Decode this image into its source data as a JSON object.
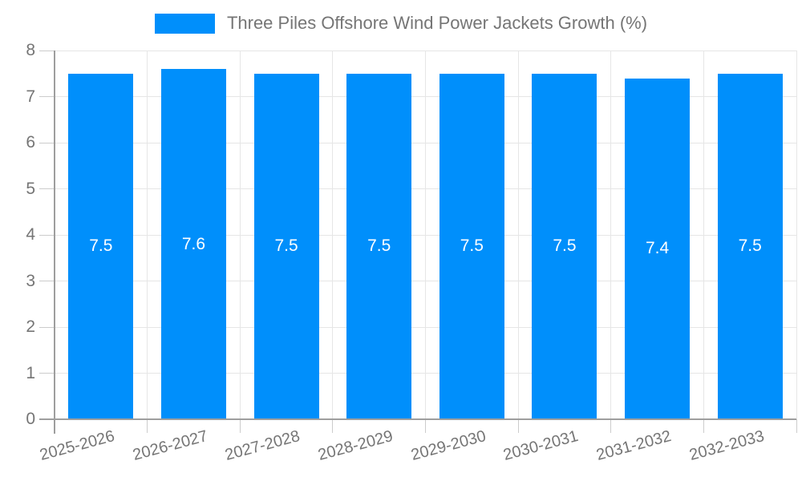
{
  "chart_data": {
    "type": "bar",
    "title": "Three Piles Offshore Wind Power Jackets Growth (%)",
    "legend_label": "Three Piles Offshore Wind Power Jackets Growth (%)",
    "legend_position": "top",
    "categories": [
      "2025-2026",
      "2026-2027",
      "2027-2028",
      "2028-2029",
      "2029-2030",
      "2030-2031",
      "2031-2032",
      "2032-2033"
    ],
    "values": [
      7.5,
      7.6,
      7.5,
      7.5,
      7.5,
      7.5,
      7.4,
      7.5
    ],
    "bar_value_labels": [
      "7.5",
      "7.6",
      "7.5",
      "7.5",
      "7.5",
      "7.5",
      "7.4",
      "7.5"
    ],
    "xlabel": "",
    "ylabel": "",
    "ylim": [
      0,
      8
    ],
    "ytick_step": 1,
    "ytick_labels": [
      "0",
      "1",
      "2",
      "3",
      "4",
      "5",
      "6",
      "7",
      "8"
    ],
    "grid": true,
    "colors": {
      "bar": "#008FFB",
      "bar_label_text": "#FFFFFF",
      "axis_line": "#9E9E9E",
      "grid_line": "#E6E6E6",
      "tick_line": "#CCCCCC",
      "tick_label_text": "#757575",
      "legend_text": "#757575",
      "background": "#FFFFFF"
    }
  }
}
